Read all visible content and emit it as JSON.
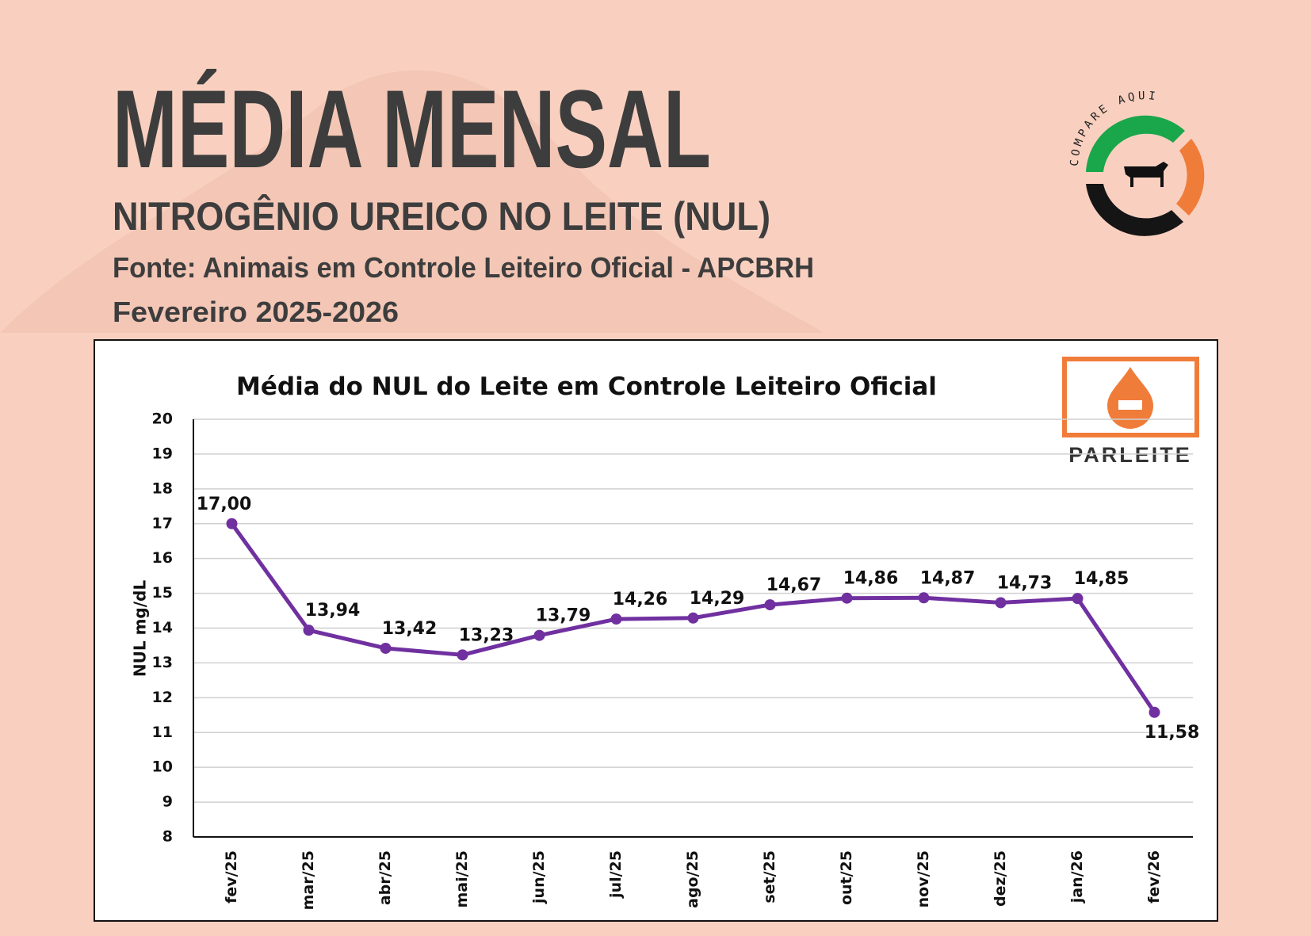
{
  "header": {
    "title": "MÉDIA MENSAL",
    "subtitle": "NITROGÊNIO UREICO NO LEITE (NUL)",
    "source": "Fonte: Animais em Controle Leiteiro Oficial - APCBRH",
    "period": "Fevereiro 2025-2026"
  },
  "logos": {
    "compare": "COMPARE AQUI",
    "parleite": "PARLEITE"
  },
  "chart_data": {
    "type": "line",
    "title": "Média do NUL do Leite em Controle Leiteiro Oficial",
    "y_label": "NUL mg/dL",
    "categories": [
      "fev/25",
      "mar/25",
      "abr/25",
      "mai/25",
      "jun/25",
      "jul/25",
      "ago/25",
      "set/25",
      "out/25",
      "nov/25",
      "dez/25",
      "jan/26",
      "fev/26"
    ],
    "values": [
      17.0,
      13.94,
      13.42,
      13.23,
      13.79,
      14.26,
      14.29,
      14.67,
      14.86,
      14.87,
      14.73,
      14.85,
      11.58
    ],
    "value_labels": [
      "17,00",
      "13,94",
      "13,42",
      "13,23",
      "13,79",
      "14,26",
      "14,29",
      "14,67",
      "14,86",
      "14,87",
      "14,73",
      "14,85",
      "11,58"
    ],
    "color": "#7030a0",
    "ylim": [
      8,
      20
    ],
    "yticks": [
      8,
      9,
      10,
      11,
      12,
      13,
      14,
      15,
      16,
      17,
      18,
      19,
      20
    ],
    "grid": true
  }
}
